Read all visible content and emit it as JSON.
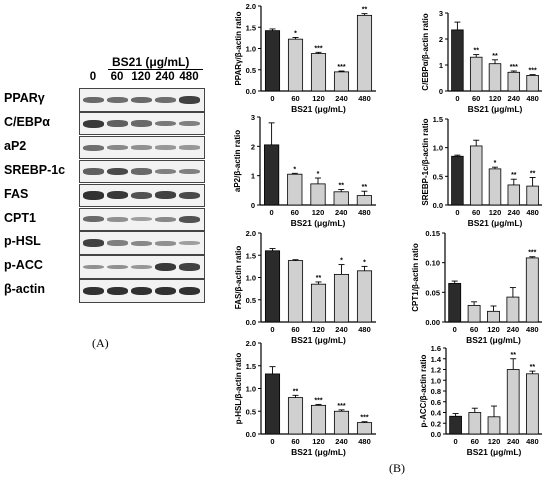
{
  "panel_a": {
    "treatment_label": "BS21 (μg/mL)",
    "concentrations": [
      "0",
      "60",
      "120",
      "240",
      "480"
    ],
    "blots": [
      {
        "name": "PPARγ",
        "intensity": [
          0.55,
          0.5,
          0.55,
          0.5,
          0.8
        ]
      },
      {
        "name": "C/EBPα",
        "intensity": [
          0.85,
          0.6,
          0.55,
          0.45,
          0.4
        ]
      },
      {
        "name": "aP2",
        "intensity": [
          0.5,
          0.35,
          0.3,
          0.25,
          0.25
        ]
      },
      {
        "name": "SREBP-1c",
        "intensity": [
          0.6,
          0.75,
          0.55,
          0.4,
          0.4
        ]
      },
      {
        "name": "FAS",
        "intensity": [
          0.9,
          0.85,
          0.7,
          0.8,
          0.75
        ]
      },
      {
        "name": "CPT1",
        "intensity": [
          0.55,
          0.3,
          0.2,
          0.35,
          0.7
        ]
      },
      {
        "name": "p-HSL",
        "intensity": [
          0.8,
          0.4,
          0.35,
          0.3,
          0.2
        ]
      },
      {
        "name": "p-ACC",
        "intensity": [
          0.3,
          0.3,
          0.25,
          0.85,
          0.8
        ]
      },
      {
        "name": "β-actin",
        "intensity": [
          0.9,
          0.9,
          0.9,
          0.9,
          0.9
        ]
      }
    ],
    "caption": "(A)"
  },
  "panel_b": {
    "caption": "(B)"
  },
  "chart_data": [
    {
      "type": "bar",
      "categories": [
        "0",
        "60",
        "120",
        "240",
        "480"
      ],
      "values": [
        1.42,
        1.22,
        0.88,
        0.45,
        1.78
      ],
      "errors": [
        0.04,
        0.04,
        0.03,
        0.02,
        0.04
      ],
      "significance": [
        "",
        "*",
        "***",
        "***",
        "**"
      ],
      "ylabel": "PPARγ/β-actin ratio",
      "xlabel": "BS21 (μg/mL)",
      "ylim": [
        0,
        2.0
      ],
      "ticks": [
        "0.0",
        "0.5",
        "1.0",
        "1.5",
        "2.0"
      ]
    },
    {
      "type": "bar",
      "categories": [
        "0",
        "60",
        "120",
        "240",
        "480"
      ],
      "values": [
        2.35,
        1.3,
        1.05,
        0.72,
        0.6
      ],
      "errors": [
        0.3,
        0.1,
        0.15,
        0.05,
        0.03
      ],
      "significance": [
        "",
        "**",
        "**",
        "***",
        "***"
      ],
      "ylabel": "C/EBPα/β-actin ratio",
      "xlabel": "BS21 (μg/mL)",
      "ylim": [
        0,
        3
      ],
      "ticks": [
        "0",
        "1",
        "2",
        "3"
      ]
    },
    {
      "type": "bar",
      "categories": [
        "0",
        "60",
        "120",
        "240",
        "480"
      ],
      "values": [
        2.05,
        1.05,
        0.72,
        0.45,
        0.32
      ],
      "errors": [
        0.75,
        0.03,
        0.2,
        0.08,
        0.15
      ],
      "significance": [
        "",
        "*",
        "*",
        "**",
        "**"
      ],
      "ylabel": "aP2/β-actin ratio",
      "xlabel": "BS21 (μg/mL)",
      "ylim": [
        0,
        3
      ],
      "ticks": [
        "0",
        "1",
        "2",
        "3"
      ]
    },
    {
      "type": "bar",
      "categories": [
        "0",
        "60",
        "120",
        "240",
        "480"
      ],
      "values": [
        0.85,
        1.03,
        0.63,
        0.35,
        0.33
      ],
      "errors": [
        0.02,
        0.1,
        0.03,
        0.1,
        0.15
      ],
      "significance": [
        "",
        "",
        "*",
        "**",
        "**"
      ],
      "ylabel": "SREBP-1c/β-actin ratio",
      "xlabel": "BS21 (μg/mL)",
      "ylim": [
        0,
        1.5
      ],
      "ticks": [
        "0.0",
        "0.5",
        "1.0",
        "1.5"
      ]
    },
    {
      "type": "bar",
      "categories": [
        "0",
        "60",
        "120",
        "240",
        "480"
      ],
      "values": [
        1.6,
        1.38,
        0.85,
        1.07,
        1.15
      ],
      "errors": [
        0.05,
        0.02,
        0.05,
        0.22,
        0.1
      ],
      "significance": [
        "",
        "",
        "**",
        "*",
        "*"
      ],
      "ylabel": "FAS/β-actin ratio",
      "xlabel": "BS21 (μg/mL)",
      "ylim": [
        0,
        2.0
      ],
      "ticks": [
        "0.0",
        "0.5",
        "1.0",
        "1.5",
        "2.0"
      ]
    },
    {
      "type": "bar",
      "categories": [
        "0",
        "60",
        "120",
        "240",
        "480"
      ],
      "values": [
        0.065,
        0.028,
        0.018,
        0.042,
        0.108
      ],
      "errors": [
        0.004,
        0.006,
        0.009,
        0.016,
        0.002
      ],
      "significance": [
        "",
        "",
        "",
        "",
        "***"
      ],
      "ylabel": "CPT1/β-actin ratio",
      "xlabel": "BS21 (μg/mL)",
      "ylim": [
        0,
        0.15
      ],
      "ticks": [
        "0.00",
        "0.05",
        "0.10",
        "0.15"
      ]
    },
    {
      "type": "bar",
      "categories": [
        "0",
        "60",
        "120",
        "240",
        "480"
      ],
      "values": [
        1.32,
        0.8,
        0.63,
        0.5,
        0.25
      ],
      "errors": [
        0.16,
        0.05,
        0.02,
        0.03,
        0.02
      ],
      "significance": [
        "",
        "**",
        "***",
        "***",
        "***"
      ],
      "ylabel": "p-HSL/β-actin ratio",
      "xlabel": "BS21 (μg/mL)",
      "ylim": [
        0,
        2.0
      ],
      "ticks": [
        "0.0",
        "0.5",
        "1.0",
        "1.5",
        "2.0"
      ]
    },
    {
      "type": "bar",
      "categories": [
        "0",
        "60",
        "120",
        "240",
        "480"
      ],
      "values": [
        0.33,
        0.4,
        0.32,
        1.2,
        1.12
      ],
      "errors": [
        0.05,
        0.08,
        0.2,
        0.2,
        0.05
      ],
      "significance": [
        "",
        "",
        "",
        "**",
        "**"
      ],
      "ylabel": "p-ACC/β-actin ratio",
      "xlabel": "BS21 (μg/mL)",
      "ylim": [
        0,
        1.6
      ],
      "ticks": [
        "0.0",
        "0.2",
        "0.4",
        "0.6",
        "0.8",
        "1.0",
        "1.2",
        "1.4",
        "1.6"
      ]
    }
  ],
  "colors": {
    "control": "#2b2b2b",
    "treated": "#d0d0d0",
    "axis": "#000000"
  }
}
